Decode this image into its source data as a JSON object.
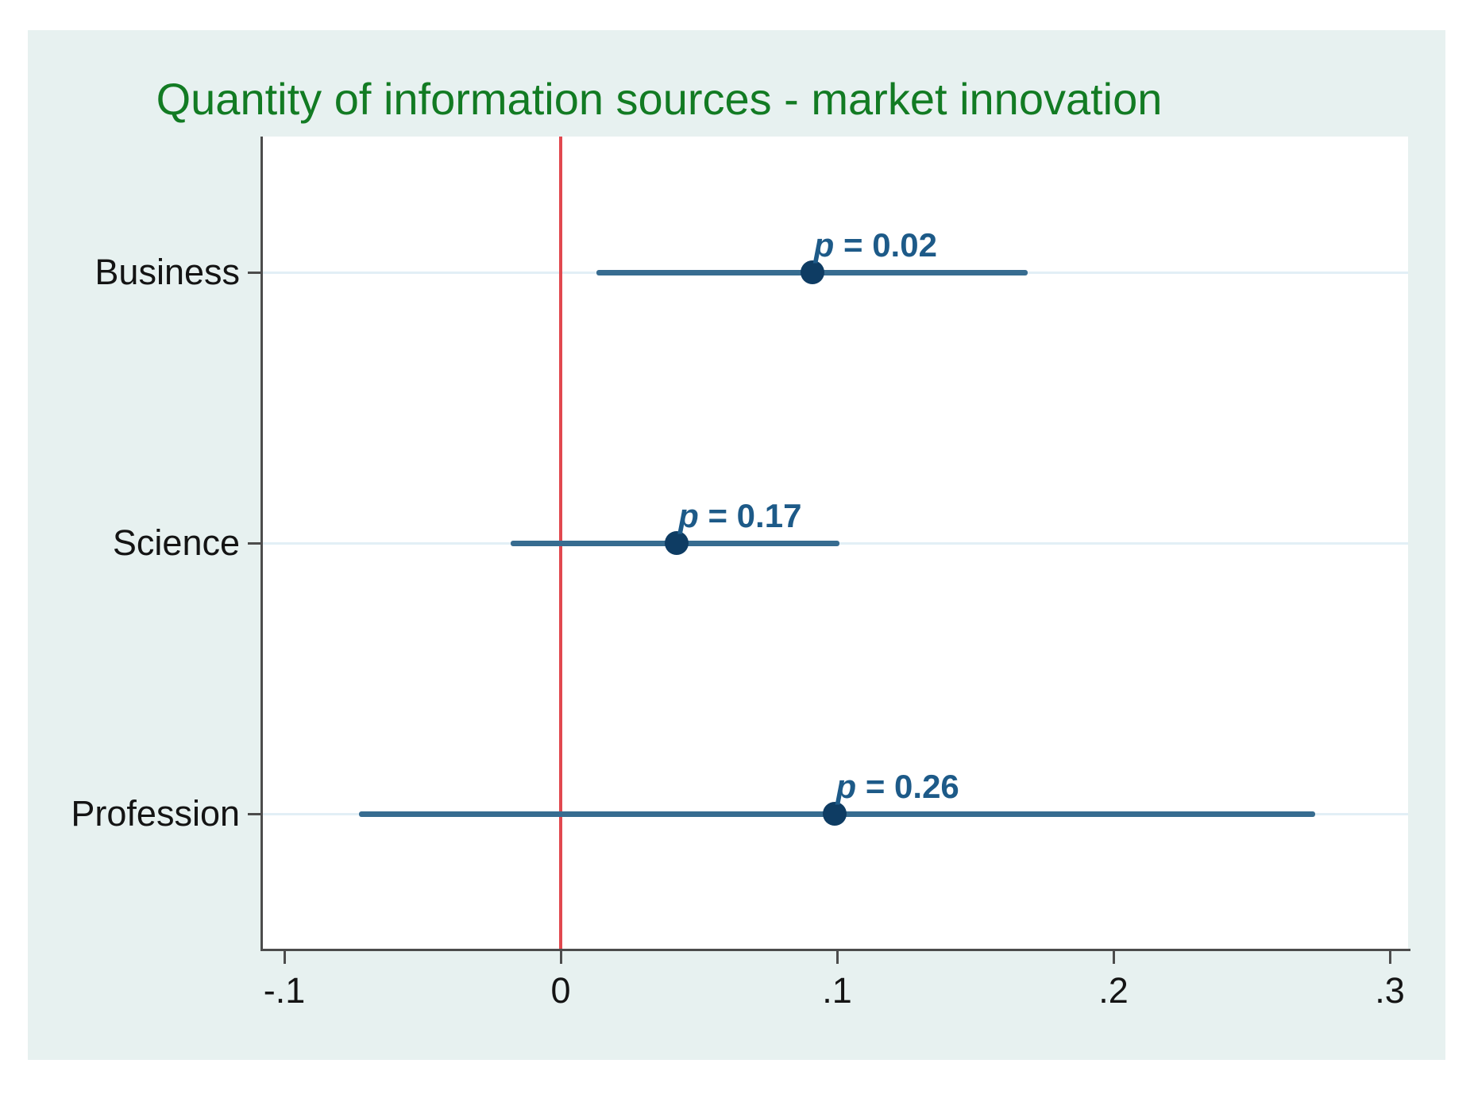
{
  "chart_data": {
    "type": "scatter",
    "subtype": "coefficient-plot-with-confidence-intervals",
    "title": "Quantity of information sources - market innovation",
    "categories": [
      "Business",
      "Science",
      "Profession"
    ],
    "rows": [
      {
        "label": "Business",
        "estimate": 0.091,
        "ci_low": 0.013,
        "ci_high": 0.169,
        "p": "0.02"
      },
      {
        "label": "Science",
        "estimate": 0.042,
        "ci_low": -0.018,
        "ci_high": 0.101,
        "p": "0.17"
      },
      {
        "label": "Profession",
        "estimate": 0.099,
        "ci_low": -0.073,
        "ci_high": 0.273,
        "p": "0.26"
      }
    ],
    "p_symbol": "p",
    "p_separator": " = ",
    "x_axis": {
      "tick_labels": [
        "-.1",
        "0",
        ".1",
        ".2",
        ".3"
      ],
      "tick_values": [
        -0.1,
        0,
        0.1,
        0.2,
        0.3
      ],
      "range": [
        -0.108,
        0.307
      ]
    },
    "reference_line": {
      "value": 0
    },
    "grid": true,
    "legend_position": "none",
    "colors": {
      "title": "#127b23",
      "ci_line": "#376c90",
      "marker": "#0e3c63",
      "p_text": "#1d5a88",
      "reference_line": "#e1484e",
      "canvas_background": "#e7f1f0",
      "plot_background": "#ffffff",
      "gridline": "#e2eff6",
      "axis": "#4c4c4c",
      "tick_text": "#141414"
    }
  }
}
